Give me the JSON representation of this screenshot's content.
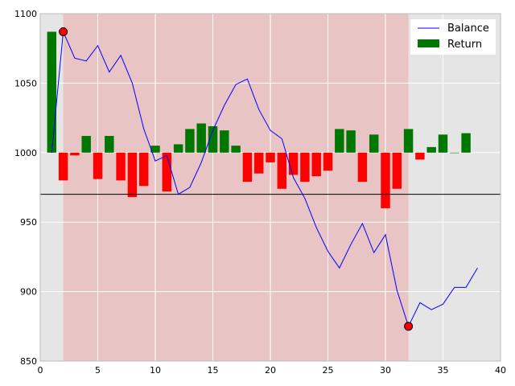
{
  "chart_data": {
    "type": "bar+line",
    "xlim": [
      0,
      40
    ],
    "ylim": [
      850,
      1100
    ],
    "xticks": [
      0,
      5,
      10,
      15,
      20,
      25,
      30,
      35,
      40
    ],
    "yticks": [
      850,
      900,
      950,
      1000,
      1050,
      1100
    ],
    "grid": true,
    "legend_position": "top-right",
    "highlight_span": {
      "x_start": 2,
      "x_end": 32,
      "color": "#e8c4c4"
    },
    "background_color": "#e5e5e5",
    "reference_line": {
      "y": 970,
      "color": "#000000"
    },
    "series": [
      {
        "name": "Balance",
        "kind": "line",
        "color": "#0000ff",
        "x": [
          1,
          2,
          3,
          4,
          5,
          6,
          7,
          8,
          9,
          10,
          11,
          12,
          13,
          14,
          15,
          16,
          17,
          18,
          19,
          20,
          21,
          22,
          23,
          24,
          25,
          26,
          27,
          28,
          29,
          30,
          31,
          32,
          33,
          34,
          35,
          36,
          37,
          38
        ],
        "values": [
          1000,
          1087,
          1068,
          1066,
          1077,
          1058,
          1070,
          1050,
          1017,
          994,
          998,
          970,
          975,
          993,
          1016,
          1034,
          1049,
          1053,
          1031,
          1016,
          1010,
          982,
          967,
          946,
          929,
          917,
          934,
          949,
          928,
          941,
          901,
          875,
          892,
          887,
          891,
          903,
          903,
          917
        ]
      },
      {
        "name": "Return",
        "kind": "bar",
        "positive_color": "#007700",
        "negative_color": "#ff0000",
        "x": [
          1,
          2,
          3,
          4,
          5,
          6,
          7,
          8,
          9,
          10,
          11,
          12,
          13,
          14,
          15,
          16,
          17,
          18,
          19,
          20,
          21,
          22,
          23,
          24,
          25,
          26,
          27,
          28,
          29,
          30,
          31,
          32,
          33,
          34,
          35,
          36,
          37
        ],
        "values": [
          87,
          -20,
          -2,
          12,
          -19,
          12,
          -20,
          -32,
          -24,
          5,
          -28,
          6,
          17,
          21,
          19,
          16,
          5,
          -21,
          -15,
          -7,
          -26,
          -16,
          -21,
          -17,
          -13,
          17,
          16,
          -21,
          13,
          -40,
          -26,
          17,
          -5,
          4,
          13,
          0,
          14
        ]
      }
    ],
    "markers": [
      {
        "x": 2,
        "y": 1087,
        "color": "#ff0000"
      },
      {
        "x": 32,
        "y": 875,
        "color": "#ff0000"
      }
    ]
  }
}
